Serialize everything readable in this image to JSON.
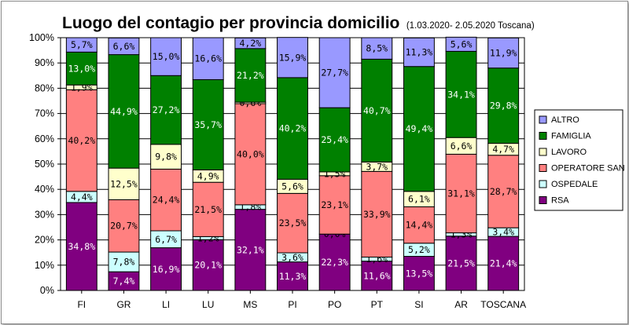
{
  "chart_data": {
    "type": "bar",
    "stacked": true,
    "title": "Luogo del contagio per provincia domicilio",
    "subtitle": "(1.03.2020- 2.05.2020 Toscana)",
    "xlabel": "",
    "ylabel": "",
    "ylim": [
      0,
      100
    ],
    "yticks": [
      "0%",
      "10%",
      "20%",
      "30%",
      "40%",
      "50%",
      "60%",
      "70%",
      "80%",
      "90%",
      "100%"
    ],
    "grid": true,
    "legend_position": "right",
    "categories": [
      "FI",
      "GR",
      "LI",
      "LU",
      "MS",
      "PI",
      "PO",
      "PT",
      "SI",
      "AR",
      "TOSCANA"
    ],
    "series": [
      {
        "name": "RSA",
        "color": "#800080",
        "label_color": "#ffffff",
        "values": [
          34.8,
          7.4,
          16.9,
          20.1,
          32.1,
          11.3,
          22.3,
          11.6,
          13.5,
          21.5,
          21.4
        ],
        "labels": [
          "34,8%",
          "7,4%",
          "16,9%",
          "20,1%",
          "32,1%",
          "11,3%",
          "22,3%",
          "11,6%",
          "13,5%",
          "21,5%",
          "21,4%"
        ]
      },
      {
        "name": "OSPEDALE",
        "color": "#ccffff",
        "label_color": "#000000",
        "values": [
          4.4,
          7.8,
          6.7,
          1.2,
          1.8,
          3.6,
          0.0,
          1.6,
          5.2,
          1.3,
          3.4
        ],
        "labels": [
          "4,4%",
          "7,8%",
          "6,7%",
          "1,2%",
          "1,8%",
          "3,6%",
          "0,0%",
          "1,6%",
          "5,2%",
          "1,3%",
          "3,4%"
        ]
      },
      {
        "name": "OPERATORE SAN",
        "color": "#ff8080",
        "label_color": "#000000",
        "values": [
          40.2,
          20.7,
          24.4,
          21.5,
          40.0,
          23.5,
          23.1,
          33.9,
          14.4,
          31.1,
          28.7
        ],
        "labels": [
          "40,2%",
          "20,7%",
          "24,4%",
          "21,5%",
          "40,0%",
          "23,5%",
          "23,1%",
          "33,9%",
          "14,4%",
          "31,1%",
          "28,7%"
        ]
      },
      {
        "name": "LAVORO",
        "color": "#ffffcc",
        "label_color": "#000000",
        "values": [
          1.9,
          12.5,
          9.8,
          4.9,
          0.6,
          5.6,
          1.5,
          3.7,
          6.1,
          6.6,
          4.7
        ],
        "labels": [
          "1,9%",
          "12,5%",
          "9,8%",
          "4,9%",
          "0,6%",
          "5,6%",
          "1,5%",
          "3,7%",
          "6,1%",
          "6,6%",
          "4,7%"
        ]
      },
      {
        "name": "FAMIGLIA",
        "color": "#008000",
        "label_color": "#ffffff",
        "values": [
          13.0,
          44.9,
          27.2,
          35.7,
          21.2,
          40.2,
          25.4,
          40.7,
          49.4,
          34.1,
          29.8
        ],
        "labels": [
          "13,0%",
          "44,9%",
          "27,2%",
          "35,7%",
          "21,2%",
          "40,2%",
          "25,4%",
          "40,7%",
          "49,4%",
          "34,1%",
          "29,8%"
        ]
      },
      {
        "name": "ALTRO",
        "color": "#9999ff",
        "label_color": "#000000",
        "values": [
          5.7,
          6.6,
          15.0,
          16.6,
          4.2,
          15.9,
          27.7,
          8.5,
          11.3,
          5.6,
          11.9
        ],
        "labels": [
          "5,7%",
          "6,6%",
          "15,0%",
          "16,6%",
          "4,2%",
          "15,9%",
          "27,7%",
          "8,5%",
          "11,3%",
          "5,6%",
          "11,9%"
        ]
      }
    ]
  }
}
